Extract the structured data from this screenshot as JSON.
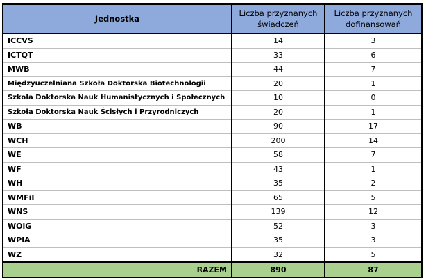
{
  "headers": [
    "Jednostka",
    "Liczba przyznanych świadczeń",
    "Liczba przyznanych dofinansowań"
  ],
  "rows": [
    {
      "unit": "ICCVS",
      "benefits": 14,
      "subsidies": 3
    },
    {
      "unit": "ICTQT",
      "benefits": 33,
      "subsidies": 6
    },
    {
      "unit": "MWB",
      "benefits": 44,
      "subsidies": 7
    },
    {
      "unit": "Międzyuczelniana Szkoła Doktorska Biotechnologii",
      "benefits": 20,
      "subsidies": 1
    },
    {
      "unit": "Szkoła Doktorska Nauk Humanistycznych i Społecznych",
      "benefits": 10,
      "subsidies": 0
    },
    {
      "unit": "Szkoła Doktorska Nauk Ścisłych i Przyrodniczych",
      "benefits": 20,
      "subsidies": 1
    },
    {
      "unit": "WB",
      "benefits": 90,
      "subsidies": 17
    },
    {
      "unit": "WCH",
      "benefits": 200,
      "subsidies": 14
    },
    {
      "unit": "WE",
      "benefits": 58,
      "subsidies": 7
    },
    {
      "unit": "WF",
      "benefits": 43,
      "subsidies": 1
    },
    {
      "unit": "WH",
      "benefits": 35,
      "subsidies": 2
    },
    {
      "unit": "WMFiI",
      "benefits": 65,
      "subsidies": 5
    },
    {
      "unit": "WNS",
      "benefits": 139,
      "subsidies": 12
    },
    {
      "unit": "WOiG",
      "benefits": 52,
      "subsidies": 3
    },
    {
      "unit": "WPiA",
      "benefits": 35,
      "subsidies": 3
    },
    {
      "unit": "WZ",
      "benefits": 32,
      "subsidies": 5
    }
  ],
  "total": {
    "label": "RAZEM",
    "benefits": 890,
    "subsidies": 87
  },
  "colors": {
    "header": "#8EA9DB",
    "total": "#A9D08E"
  }
}
